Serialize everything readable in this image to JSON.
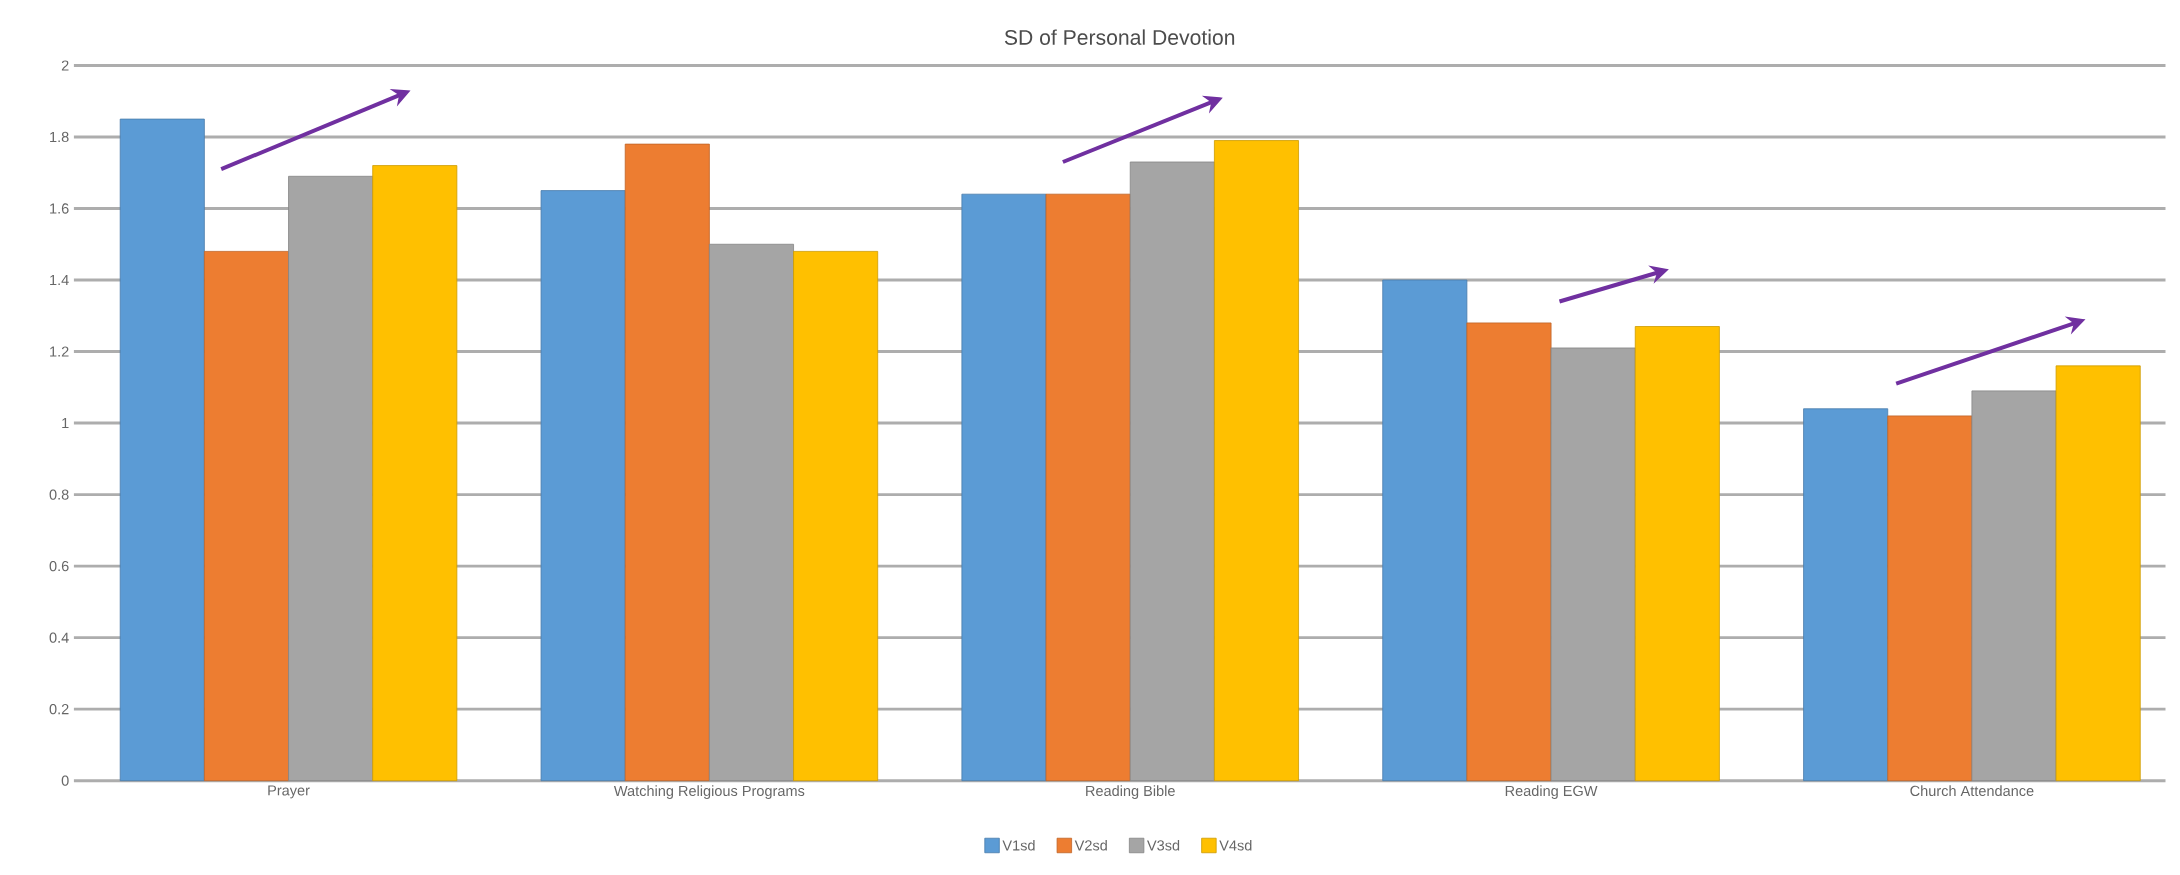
{
  "chart_data": {
    "type": "bar",
    "title": "SD of Personal Devotion",
    "categories": [
      "Prayer",
      "Watching Religious Programs",
      "Reading Bible",
      "Reading EGW",
      "Church Attendance"
    ],
    "series": [
      {
        "name": "V1sd",
        "color": "#5b9bd5",
        "values": [
          1.85,
          1.65,
          1.64,
          1.4,
          1.04
        ]
      },
      {
        "name": "V2sd",
        "color": "#ed7d31",
        "values": [
          1.48,
          1.78,
          1.64,
          1.28,
          1.02
        ]
      },
      {
        "name": "V3sd",
        "color": "#a5a5a5",
        "values": [
          1.69,
          1.5,
          1.73,
          1.21,
          1.09
        ]
      },
      {
        "name": "V4sd",
        "color": "#ffc000",
        "values": [
          1.72,
          1.48,
          1.79,
          1.27,
          1.16
        ]
      }
    ],
    "ylim": [
      0,
      2
    ],
    "yticks": [
      0,
      0.2,
      0.4,
      0.6,
      0.8,
      1,
      1.2,
      1.4,
      1.6,
      1.8,
      2
    ],
    "grid": "y",
    "legend": "bottom"
  }
}
